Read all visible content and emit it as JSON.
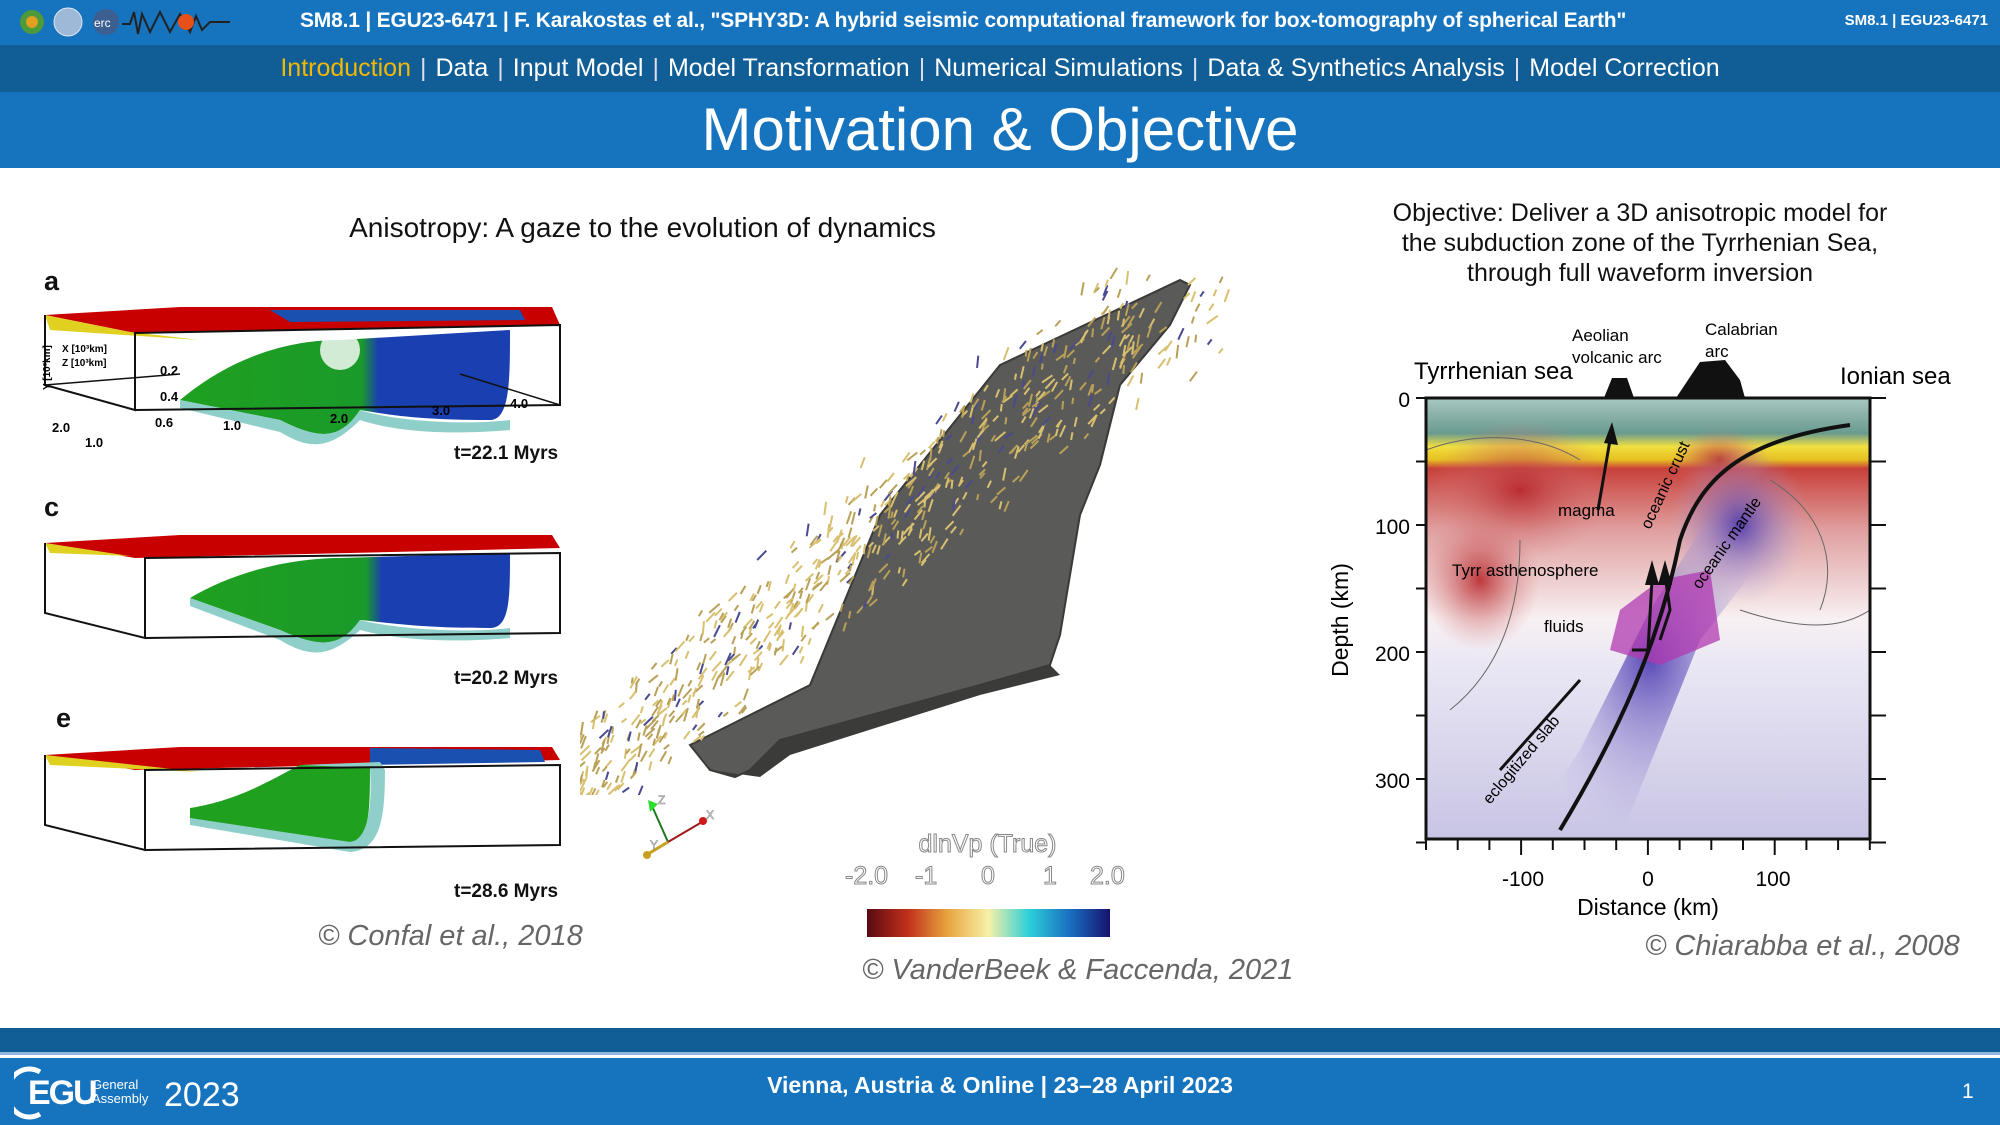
{
  "header": {
    "title": "SM8.1 | EGU23-6471 | F. Karakostas et al., \"SPHY3D: A hybrid seismic computational framework for box-tomography of spherical Earth\"",
    "session_id": "SM8.1 | EGU23-6471",
    "logos": [
      "INGV",
      "University of Bologna",
      "erc",
      "NEWTON - New Window inTO Earth's iNterior"
    ]
  },
  "nav": {
    "items": [
      {
        "label": "Introduction",
        "active": true
      },
      {
        "label": "Data"
      },
      {
        "label": "Input Model"
      },
      {
        "label": "Model Transformation"
      },
      {
        "label": "Numerical Simulations"
      },
      {
        "label": "Data & Synthetics Analysis"
      },
      {
        "label": "Model Correction"
      }
    ],
    "separator": "|",
    "active_color": "#f3b800"
  },
  "slide_title": "Motivation & Objective",
  "left": {
    "heading": "Anisotropy: A gaze to the evolution of dynamics",
    "panels": [
      {
        "label": "a",
        "time": "t=22.1 Myrs",
        "axes": {
          "x": "X [10³km]",
          "z": "Z [10³km]",
          "y": "Y [10³km]",
          "y_ticks": [
            "0.2",
            "0.4",
            "0.6"
          ],
          "x_ticks": [
            "1.0",
            "2.0",
            "3.0",
            "4.0"
          ],
          "z_ticks": [
            "2.0",
            "1.0"
          ]
        }
      },
      {
        "label": "c",
        "time": "t=20.2 Myrs"
      },
      {
        "label": "e",
        "time": "t=28.6 Myrs"
      }
    ],
    "credit": "© Confal et al., 2018"
  },
  "center": {
    "colorbar": {
      "title": "dlnVp (True)",
      "ticks": [
        "-2.0",
        "-1",
        "0",
        "1",
        "2.0"
      ],
      "colors": [
        "#5a0a14",
        "#c0301a",
        "#e8a640",
        "#f7f0a8",
        "#2cd0d8",
        "#1a6fc0",
        "#16136e"
      ]
    },
    "triad": {
      "x": "X",
      "y": "Y",
      "z": "Z"
    },
    "credit": "© VanderBeek & Faccenda, 2021"
  },
  "right": {
    "objective": "Objective: Deliver a 3D anisotropic model for the subduction zone of the Tyrrhenian Sea, through full waveform inversion",
    "figure": {
      "labels": {
        "west": "Tyrrhenian sea",
        "east": "Ionian sea",
        "aeolian_1": "Aeolian",
        "aeolian_2": "volcanic arc",
        "calabrian_1": "Calabrian",
        "calabrian_2": "arc",
        "magma": "magma",
        "asthenosphere": "Tyrr asthenosphere",
        "fluids": "fluids",
        "oceanic_crust": "oceanic crust",
        "oceanic_mantle": "oceanic mantle",
        "slab": "eclogitized slab"
      },
      "ylabel": "Depth (km)",
      "xlabel": "Distance (km)",
      "y_ticks": [
        "0",
        "100",
        "200",
        "300"
      ],
      "x_ticks": [
        "-100",
        "0",
        "100"
      ]
    },
    "credit": "© Chiarabba et al., 2008"
  },
  "footer": {
    "logo_text": "EGU",
    "logo_sub1": "General",
    "logo_sub2": "Assembly",
    "logo_year": "2023",
    "event": "Vienna, Austria & Online | 23–28 April 2023",
    "page": "1"
  }
}
